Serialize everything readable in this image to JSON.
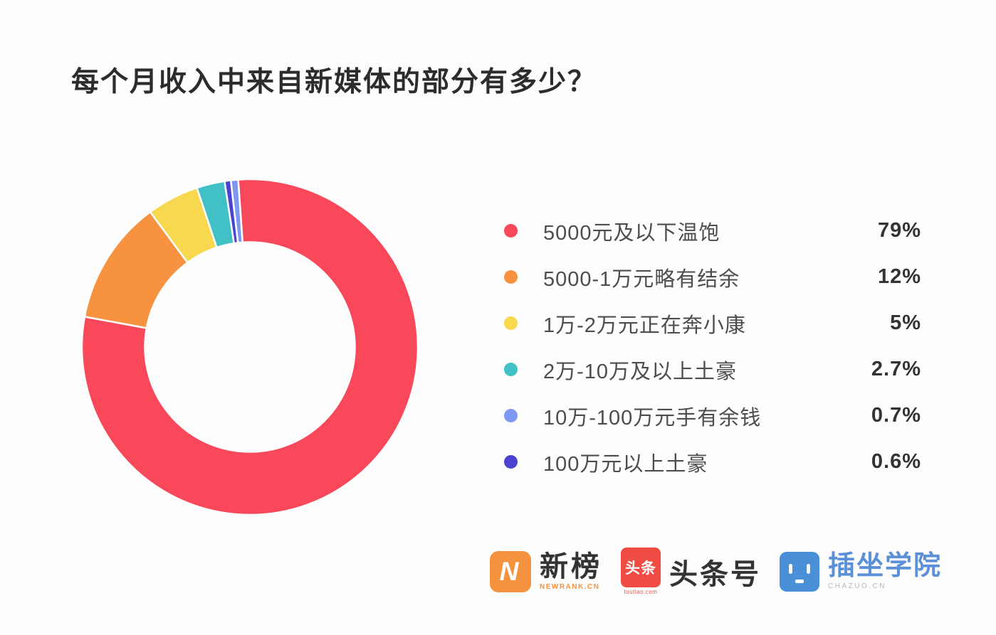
{
  "chart_data": {
    "type": "pie",
    "subtype": "donut",
    "title": "每个月收入中来自新媒体的部分有多少？",
    "legend_position": "right",
    "grid": false,
    "series": [
      {
        "label": "5000元及以下温饱",
        "value": 79,
        "percent_label": "79%",
        "color": "#f8485a"
      },
      {
        "label": "5000-1万元略有结余",
        "value": 12,
        "percent_label": "12%",
        "color": "#f79240"
      },
      {
        "label": "1万-2万元正在奔小康",
        "value": 5,
        "percent_label": "5%",
        "color": "#f7d84e"
      },
      {
        "label": "2万-10万及以上土豪",
        "value": 2.7,
        "percent_label": "2.7%",
        "color": "#41c0c5"
      },
      {
        "label": "10万-100万元手有余钱",
        "value": 0.7,
        "percent_label": "0.7%",
        "color": "#7d97f2"
      },
      {
        "label": "100万元以上土豪",
        "value": 0.6,
        "percent_label": "0.6%",
        "color": "#4a43cf"
      }
    ],
    "donut": {
      "start_angle_deg": -4,
      "clockwise": true,
      "inner_radius_ratio": 0.625,
      "slice_draw_order": [
        0,
        1,
        2,
        3,
        5,
        4
      ],
      "border_color": "#ffffff"
    }
  },
  "footer": {
    "logos": [
      {
        "name": "新榜",
        "subtext": "NEWRANK.CN",
        "icon": "newrank-n-icon",
        "icon_color": "#f5923e",
        "icon_letter": "N"
      },
      {
        "name": "头条号",
        "subtext": "toutiao.com",
        "icon": "toutiao-icon",
        "icon_color": "#f04c43",
        "icon_text": "头条"
      },
      {
        "name": "插坐学院",
        "subtext": "CHAZUO.CN",
        "icon": "chazuo-robot-icon",
        "icon_color": "#4a90d9"
      }
    ]
  }
}
